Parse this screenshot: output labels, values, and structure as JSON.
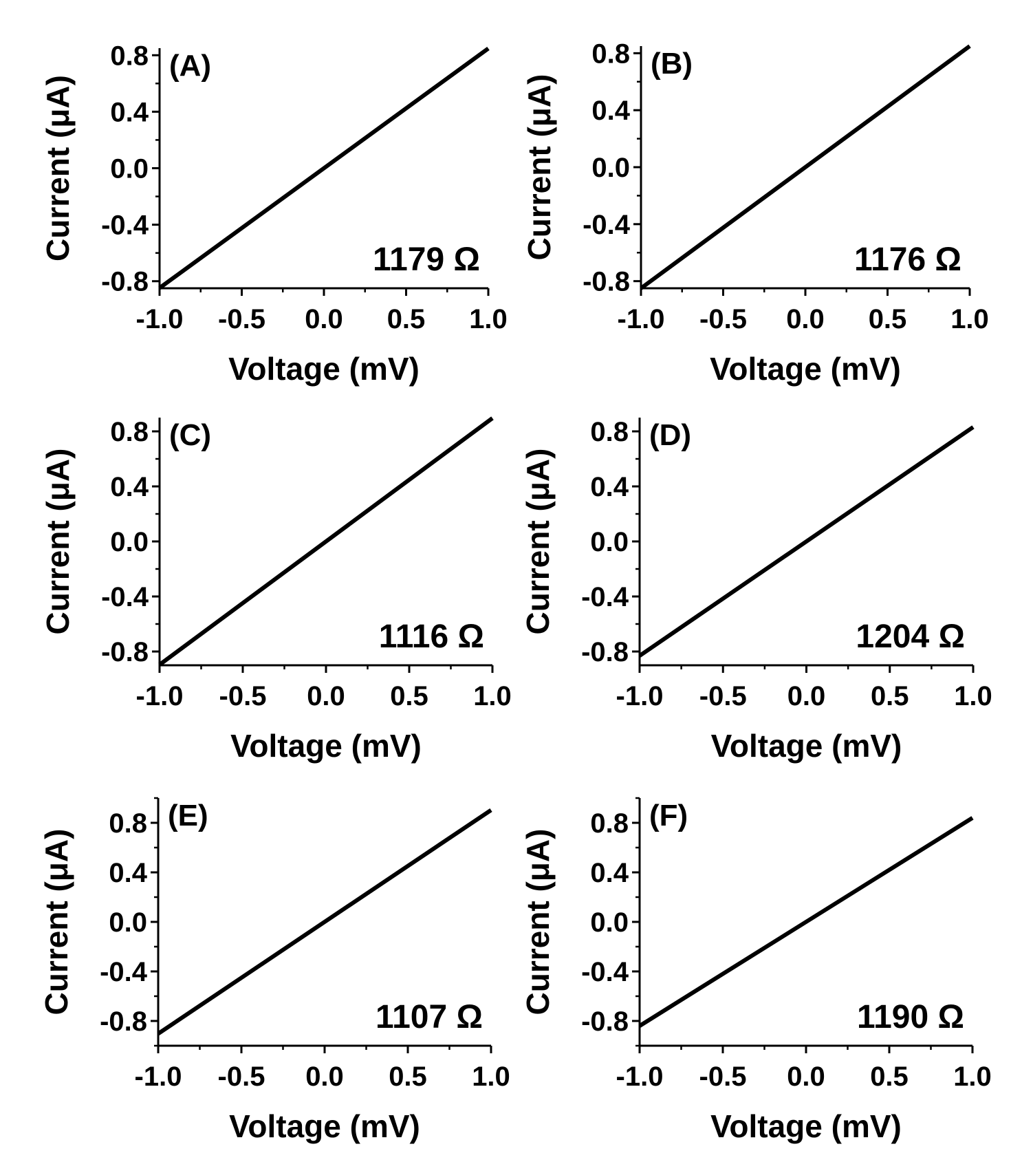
{
  "colors": {
    "line": "#000000",
    "axis": "#000000",
    "background": "#ffffff"
  },
  "chart_data": [
    {
      "type": "line",
      "panel_label": "(A)",
      "annotation": "1179 Ω",
      "xlabel": "Voltage (mV)",
      "ylabel": "Current (μA)",
      "xlim": [
        -1.0,
        1.0
      ],
      "ylim": [
        -0.85,
        0.85
      ],
      "x_ticks": [
        "-1.0",
        "-0.5",
        "0.0",
        "0.5",
        "1.0"
      ],
      "y_ticks": [
        "-0.8",
        "-0.4",
        "0.0",
        "0.4",
        "0.8"
      ],
      "grid": false,
      "series": [
        {
          "x": [
            -1.0,
            1.0
          ],
          "y": [
            -0.848,
            0.848
          ]
        }
      ]
    },
    {
      "type": "line",
      "panel_label": "(B)",
      "annotation": "1176 Ω",
      "xlabel": "Voltage (mV)",
      "ylabel": "Current (μA)",
      "xlim": [
        -1.0,
        1.0
      ],
      "ylim": [
        -0.85,
        0.85
      ],
      "x_ticks": [
        "-1.0",
        "-0.5",
        "0.0",
        "0.5",
        "1.0"
      ],
      "y_ticks": [
        "-0.8",
        "-0.4",
        "0.0",
        "0.4",
        "0.8"
      ],
      "grid": false,
      "series": [
        {
          "x": [
            -1.0,
            1.0
          ],
          "y": [
            -0.85,
            0.85
          ]
        }
      ]
    },
    {
      "type": "line",
      "panel_label": "(C)",
      "annotation": "1116 Ω",
      "xlabel": "Voltage (mV)",
      "ylabel": "Current (μA)",
      "xlim": [
        -1.0,
        1.0
      ],
      "ylim": [
        -0.9,
        0.9
      ],
      "x_ticks": [
        "-1.0",
        "-0.5",
        "0.0",
        "0.5",
        "1.0"
      ],
      "y_ticks": [
        "-0.8",
        "-0.4",
        "0.0",
        "0.4",
        "0.8"
      ],
      "grid": false,
      "series": [
        {
          "x": [
            -1.0,
            1.0
          ],
          "y": [
            -0.896,
            0.896
          ]
        }
      ]
    },
    {
      "type": "line",
      "panel_label": "(D)",
      "annotation": "1204 Ω",
      "xlabel": "Voltage (mV)",
      "ylabel": "Current (μA)",
      "xlim": [
        -1.0,
        1.0
      ],
      "ylim": [
        -0.9,
        0.9
      ],
      "x_ticks": [
        "-1.0",
        "-0.5",
        "0.0",
        "0.5",
        "1.0"
      ],
      "y_ticks": [
        "-0.8",
        "-0.4",
        "0.0",
        "0.4",
        "0.8"
      ],
      "grid": false,
      "series": [
        {
          "x": [
            -1.0,
            1.0
          ],
          "y": [
            -0.831,
            0.831
          ]
        }
      ]
    },
    {
      "type": "line",
      "panel_label": "(E)",
      "annotation": "1107 Ω",
      "xlabel": "Voltage (mV)",
      "ylabel": "Current (μA)",
      "xlim": [
        -1.0,
        1.0
      ],
      "ylim": [
        -1.0,
        1.0
      ],
      "x_ticks": [
        "-1.0",
        "-0.5",
        "0.0",
        "0.5",
        "1.0"
      ],
      "y_ticks": [
        "-0.8",
        "-0.4",
        "0.0",
        "0.4",
        "0.8"
      ],
      "grid": false,
      "series": [
        {
          "x": [
            -1.0,
            1.0
          ],
          "y": [
            -0.903,
            0.903
          ]
        }
      ]
    },
    {
      "type": "line",
      "panel_label": "(F)",
      "annotation": "1190 Ω",
      "xlabel": "Voltage (mV)",
      "ylabel": "Current (μA)",
      "xlim": [
        -1.0,
        1.0
      ],
      "ylim": [
        -1.0,
        1.0
      ],
      "x_ticks": [
        "-1.0",
        "-0.5",
        "0.0",
        "0.5",
        "1.0"
      ],
      "y_ticks": [
        "-0.8",
        "-0.4",
        "0.0",
        "0.4",
        "0.8"
      ],
      "grid": false,
      "series": [
        {
          "x": [
            -1.0,
            1.0
          ],
          "y": [
            -0.84,
            0.84
          ]
        }
      ]
    }
  ]
}
